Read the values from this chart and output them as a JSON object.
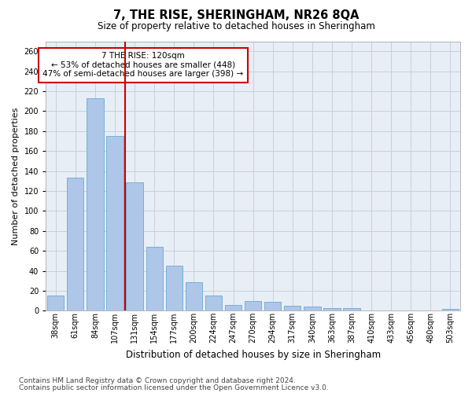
{
  "title": "7, THE RISE, SHERINGHAM, NR26 8QA",
  "subtitle": "Size of property relative to detached houses in Sheringham",
  "xlabel": "Distribution of detached houses by size in Sheringham",
  "ylabel": "Number of detached properties",
  "categories": [
    "38sqm",
    "61sqm",
    "84sqm",
    "107sqm",
    "131sqm",
    "154sqm",
    "177sqm",
    "200sqm",
    "224sqm",
    "247sqm",
    "270sqm",
    "294sqm",
    "317sqm",
    "340sqm",
    "363sqm",
    "387sqm",
    "410sqm",
    "433sqm",
    "456sqm",
    "480sqm",
    "503sqm"
  ],
  "values": [
    15,
    133,
    213,
    175,
    129,
    64,
    45,
    29,
    15,
    6,
    10,
    9,
    5,
    4,
    3,
    3,
    0,
    0,
    0,
    0,
    2
  ],
  "bar_color": "#aec6e8",
  "bar_edge_color": "#6aabd2",
  "red_line_index": 3.5,
  "red_line_color": "#cc0000",
  "annotation_text": "7 THE RISE: 120sqm\n← 53% of detached houses are smaller (448)\n47% of semi-detached houses are larger (398) →",
  "annotation_box_color": "#ffffff",
  "annotation_box_edge_color": "#cc0000",
  "ylim": [
    0,
    270
  ],
  "yticks": [
    0,
    20,
    40,
    60,
    80,
    100,
    120,
    140,
    160,
    180,
    200,
    220,
    240,
    260
  ],
  "grid_color": "#c8d0dc",
  "background_color": "#e8eef6",
  "footer_line1": "Contains HM Land Registry data © Crown copyright and database right 2024.",
  "footer_line2": "Contains public sector information licensed under the Open Government Licence v3.0.",
  "title_fontsize": 10.5,
  "subtitle_fontsize": 8.5,
  "xlabel_fontsize": 8.5,
  "ylabel_fontsize": 8,
  "tick_fontsize": 7,
  "annotation_fontsize": 7.5,
  "footer_fontsize": 6.5
}
